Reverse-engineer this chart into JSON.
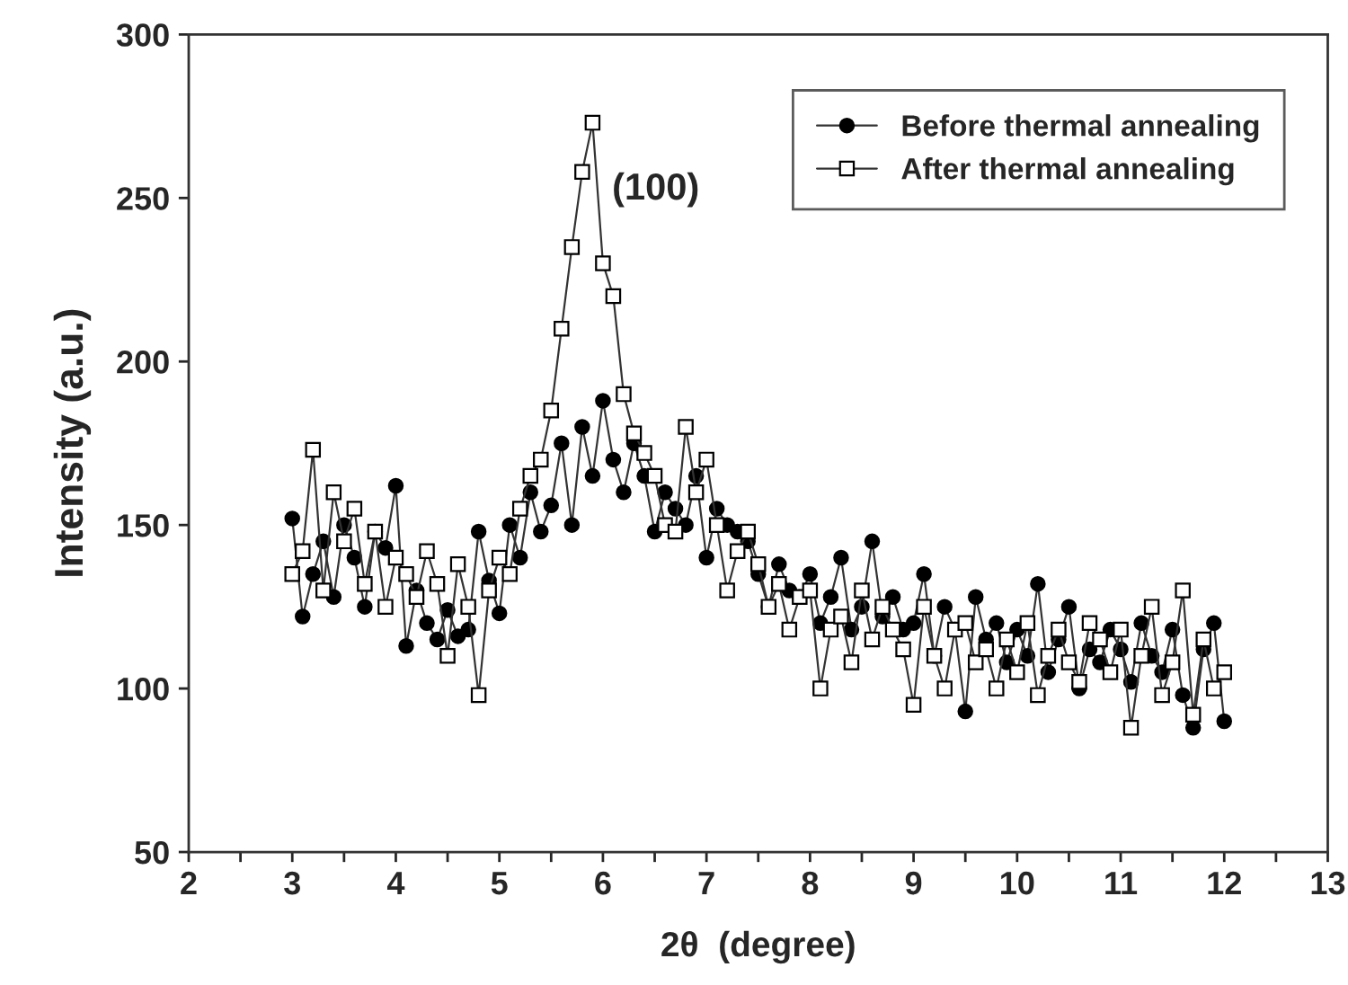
{
  "chart_data": {
    "type": "line",
    "xlabel": "2θ  (degree)",
    "ylabel": "Intensity (a.u.)",
    "x": [
      3.0,
      3.1,
      3.2,
      3.3,
      3.4,
      3.5,
      3.6,
      3.7,
      3.8,
      3.9,
      4.0,
      4.1,
      4.2,
      4.3,
      4.4,
      4.5,
      4.6,
      4.7,
      4.8,
      4.9,
      5.0,
      5.1,
      5.2,
      5.3,
      5.4,
      5.5,
      5.6,
      5.7,
      5.8,
      5.9,
      6.0,
      6.1,
      6.2,
      6.3,
      6.4,
      6.5,
      6.6,
      6.7,
      6.8,
      6.9,
      7.0,
      7.1,
      7.2,
      7.3,
      7.4,
      7.5,
      7.6,
      7.7,
      7.8,
      7.9,
      8.0,
      8.1,
      8.2,
      8.3,
      8.4,
      8.5,
      8.6,
      8.7,
      8.8,
      8.9,
      9.0,
      9.1,
      9.2,
      9.3,
      9.4,
      9.5,
      9.6,
      9.7,
      9.8,
      9.9,
      10.0,
      10.1,
      10.2,
      10.3,
      10.4,
      10.5,
      10.6,
      10.7,
      10.8,
      10.9,
      11.0,
      11.1,
      11.2,
      11.3,
      11.4,
      11.5,
      11.6,
      11.7,
      11.8,
      11.9,
      12.0
    ],
    "series": [
      {
        "name": "Before thermal annealing",
        "color": "#000000",
        "marker": "circle",
        "values": [
          152,
          122,
          135,
          145,
          128,
          150,
          140,
          125,
          148,
          143,
          162,
          113,
          130,
          120,
          115,
          124,
          116,
          118,
          148,
          133,
          123,
          150,
          140,
          160,
          148,
          156,
          175,
          150,
          180,
          165,
          188,
          170,
          160,
          175,
          165,
          148,
          160,
          155,
          150,
          165,
          140,
          155,
          150,
          148,
          145,
          135,
          125,
          138,
          130,
          128,
          135,
          120,
          128,
          140,
          118,
          125,
          145,
          122,
          128,
          118,
          120,
          135,
          110,
          125,
          118,
          93,
          128,
          115,
          120,
          108,
          118,
          110,
          132,
          105,
          115,
          125,
          100,
          112,
          108,
          118,
          112,
          102,
          120,
          110,
          105,
          118,
          98,
          88,
          112,
          120,
          90
        ]
      },
      {
        "name": "After thermal annealing",
        "color": "#ffffff",
        "marker": "square",
        "values": [
          135,
          142,
          173,
          130,
          160,
          145,
          155,
          132,
          148,
          125,
          140,
          135,
          128,
          142,
          132,
          110,
          138,
          125,
          98,
          130,
          140,
          135,
          155,
          165,
          170,
          185,
          210,
          235,
          258,
          273,
          230,
          220,
          190,
          178,
          172,
          165,
          150,
          148,
          180,
          160,
          170,
          150,
          130,
          142,
          148,
          138,
          125,
          132,
          118,
          128,
          130,
          100,
          118,
          122,
          108,
          130,
          115,
          125,
          118,
          112,
          95,
          125,
          110,
          100,
          118,
          120,
          108,
          112,
          100,
          115,
          105,
          120,
          98,
          110,
          118,
          108,
          102,
          120,
          115,
          105,
          118,
          88,
          110,
          125,
          98,
          108,
          130,
          92,
          115,
          100,
          105
        ]
      }
    ],
    "xlim": [
      2,
      13
    ],
    "xticks": [
      2,
      {
        "value": 2.5,
        "label": null
      },
      3,
      {
        "value": 3.5,
        "label": null
      },
      4,
      {
        "value": 4.5,
        "label": null
      },
      5,
      {
        "value": 5.5,
        "label": null
      },
      6,
      {
        "value": 6.5,
        "label": null
      },
      7,
      {
        "value": 7.5,
        "label": null
      },
      8,
      {
        "value": 8.5,
        "label": null
      },
      9,
      {
        "value": 9.5,
        "label": null
      },
      10,
      {
        "value": 10.5,
        "label": null
      },
      11,
      {
        "value": 11.5,
        "label": null
      },
      12,
      {
        "value": 12.5,
        "label": null
      },
      13
    ],
    "ylim": [
      50,
      300
    ],
    "yticks": [
      50,
      100,
      150,
      200,
      250,
      300
    ],
    "annotations": [
      "(100)"
    ],
    "legend": "top right",
    "grid": false,
    "line_style": "solid"
  }
}
